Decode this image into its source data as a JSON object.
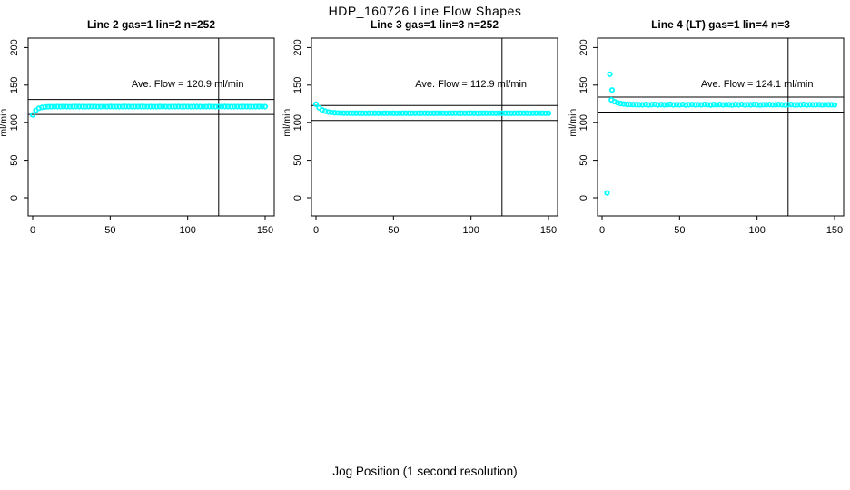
{
  "figure": {
    "title": "HDP_160726  Line Flow Shapes",
    "xlabel": "Jog Position (1 second resolution)",
    "point_color": "#00FFFF",
    "axis_color": "#000000"
  },
  "axes": {
    "xlim": [
      0,
      150
    ],
    "ylim": [
      0,
      200
    ],
    "xticks": [
      0,
      50,
      100,
      150
    ],
    "yticks": [
      0,
      50,
      100,
      150,
      200
    ],
    "y_unit": "ml/min",
    "grid": false
  },
  "chart_data": [
    {
      "type": "scatter",
      "name": "panel-line2",
      "title": "Line 2 gas=1 lin=2 n=252",
      "ave_label": "Ave. Flow =  120.9  ml/min",
      "ave_flow": 120.9,
      "ref_lines_y": [
        130.9,
        110.9
      ],
      "vline_x": 120,
      "x_start": 0,
      "x_step": 2,
      "values": [
        110.4,
        116.5,
        119.2,
        120.4,
        121.0,
        121.2,
        121.3,
        121.4,
        121.4,
        121.3,
        121.5,
        121.4,
        121.3,
        121.4,
        121.5,
        121.4,
        121.4,
        121.3,
        121.4,
        121.4,
        121.5,
        121.3,
        121.4,
        121.4,
        121.3,
        121.5,
        121.4,
        121.4,
        121.3,
        121.4,
        121.5,
        121.4,
        121.3,
        121.4,
        121.4,
        121.5,
        121.4,
        121.3,
        121.4,
        121.4,
        121.3,
        121.5,
        121.4,
        121.4,
        121.3,
        121.4,
        121.4,
        121.5,
        121.3,
        121.4,
        121.4,
        121.3,
        121.5,
        121.4,
        121.4,
        121.3,
        121.4,
        121.5,
        121.4,
        121.3,
        121.4,
        121.4,
        121.5,
        121.4,
        121.3,
        121.4,
        121.4,
        121.3,
        121.5,
        121.4,
        121.4,
        121.3,
        121.4,
        121.5,
        121.4,
        121.4
      ],
      "outliers": []
    },
    {
      "type": "scatter",
      "name": "panel-line3",
      "title": "Line 3 gas=1 lin=3 n=252",
      "ave_label": "Ave. Flow =  112.9  ml/min",
      "ave_flow": 112.9,
      "ref_lines_y": [
        122.9,
        102.9
      ],
      "vline_x": 120,
      "x_start": 0,
      "x_step": 2,
      "values": [
        124.6,
        119.9,
        117.0,
        115.3,
        114.2,
        113.6,
        113.2,
        113.0,
        112.8,
        112.7,
        112.7,
        112.7,
        112.6,
        112.6,
        112.7,
        112.6,
        112.5,
        112.6,
        112.7,
        112.6,
        112.6,
        112.5,
        112.6,
        112.6,
        112.7,
        112.6,
        112.5,
        112.6,
        112.6,
        112.7,
        112.6,
        112.6,
        112.5,
        112.6,
        112.7,
        112.6,
        112.6,
        112.5,
        112.6,
        112.6,
        112.7,
        112.6,
        112.5,
        112.6,
        112.6,
        112.7,
        112.6,
        112.6,
        112.5,
        112.6,
        112.7,
        112.6,
        112.5,
        112.6,
        112.6,
        112.7,
        112.6,
        112.6,
        112.5,
        112.6,
        112.6,
        112.7,
        112.6,
        112.5,
        112.6,
        112.6,
        112.7,
        112.6,
        112.6,
        112.5,
        112.6,
        112.7,
        112.6,
        112.6,
        112.5,
        112.6
      ],
      "outliers": []
    },
    {
      "type": "scatter",
      "name": "panel-line4",
      "title": "Line 4 (LT) gas=1 lin=4 n=3",
      "ave_label": "Ave. Flow =  124.1  ml/min",
      "ave_flow": 124.1,
      "ref_lines_y": [
        134.1,
        114.1
      ],
      "vline_x": 120,
      "x_start": 6,
      "x_step": 2,
      "values": [
        130.4,
        128.0,
        126.5,
        125.5,
        124.9,
        124.5,
        124.3,
        124.1,
        124.0,
        123.9,
        123.8,
        124.2,
        123.7,
        124.0,
        124.3,
        123.6,
        124.1,
        123.8,
        123.9,
        124.4,
        123.7,
        124.0,
        123.8,
        124.2,
        123.6,
        123.9,
        124.1,
        123.8,
        124.0,
        123.7,
        124.3,
        123.9,
        123.6,
        124.1,
        123.8,
        124.2,
        123.7,
        124.0,
        123.9,
        123.6,
        124.1,
        123.8,
        124.3,
        123.7,
        124.0,
        123.8,
        124.2,
        123.9,
        123.6,
        124.0,
        123.8,
        124.1,
        123.7,
        123.9,
        124.2,
        123.8,
        123.6,
        124.0,
        124.1,
        123.7,
        123.9,
        123.8,
        124.2,
        123.6,
        124.0,
        123.8,
        123.9,
        124.1,
        123.7,
        124.0,
        123.8,
        123.9,
        123.7
      ],
      "outliers": [
        [
          3.2,
          6.5
        ],
        [
          5.0,
          164.5
        ],
        [
          6.4,
          143.5
        ]
      ]
    }
  ]
}
